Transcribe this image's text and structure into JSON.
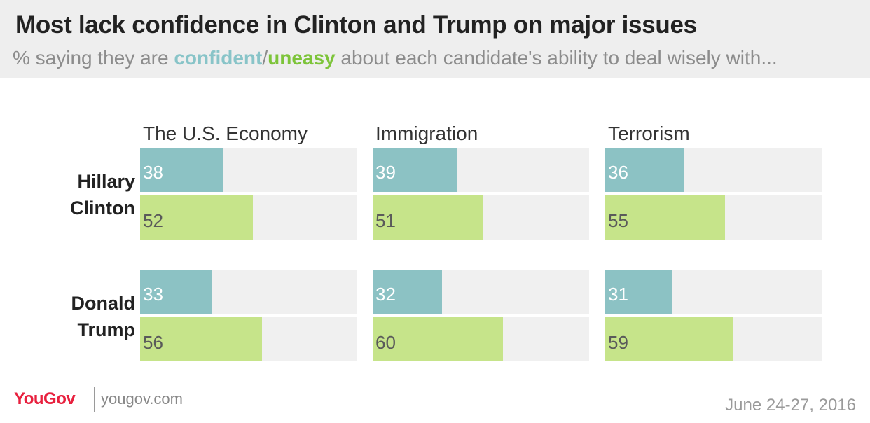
{
  "header": {
    "title": "Most lack confidence in Clinton and Trump on major issues",
    "subtitle_prefix": "% saying they are ",
    "subtitle_confident": "confident",
    "subtitle_slash": "/",
    "subtitle_uneasy": "uneasy",
    "subtitle_suffix": " about each candidate's ability to deal wisely with..."
  },
  "colors": {
    "confident": "#8cc2c4",
    "uneasy": "#c6e48a",
    "confident_text": "#88c4c8",
    "uneasy_text": "#7dc43a",
    "track": "#f0f0f0"
  },
  "chart_data": {
    "type": "bar",
    "orientation": "horizontal",
    "categories": [
      "The U.S. Economy",
      "Immigration",
      "Terrorism"
    ],
    "groups": [
      "Hillary Clinton",
      "Donald Trump"
    ],
    "xlim": [
      0,
      100
    ],
    "series": [
      {
        "name": "confident",
        "group": "Hillary Clinton",
        "values": [
          38,
          39,
          36
        ]
      },
      {
        "name": "uneasy",
        "group": "Hillary Clinton",
        "values": [
          52,
          51,
          55
        ]
      },
      {
        "name": "confident",
        "group": "Donald Trump",
        "values": [
          33,
          32,
          31
        ]
      },
      {
        "name": "uneasy",
        "group": "Donald Trump",
        "values": [
          56,
          60,
          59
        ]
      }
    ]
  },
  "row_labels": [
    {
      "line1": "Hillary",
      "line2": "Clinton"
    },
    {
      "line1": "Donald",
      "line2": "Trump"
    }
  ],
  "footer": {
    "logo": "YouGov",
    "site": "yougov.com",
    "date": "June 24-27, 2016"
  }
}
